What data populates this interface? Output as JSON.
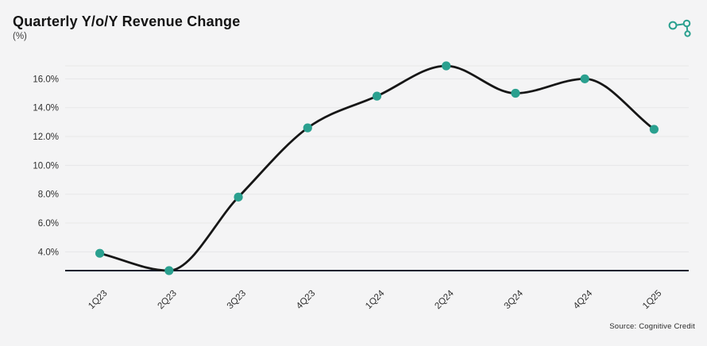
{
  "header": {
    "title": "Quarterly Y/o/Y Revenue Change",
    "subtitle": "(%)"
  },
  "logo": {
    "name": "cognitive-credit-logo",
    "color": "#2aa08f"
  },
  "footer": {
    "source": "Source: Cognitive Credit"
  },
  "chart_data": {
    "type": "line",
    "title": "Quarterly Y/o/Y Revenue Change",
    "ylabel": "(%)",
    "categories": [
      "1Q23",
      "2Q23",
      "3Q23",
      "4Q23",
      "1Q24",
      "2Q24",
      "3Q24",
      "4Q24",
      "1Q25"
    ],
    "series": [
      {
        "name": "Quarterly Y/o/Y Revenue Change",
        "values": [
          3.9,
          2.7,
          7.8,
          12.6,
          14.8,
          16.9,
          15.0,
          16.0,
          12.5
        ]
      }
    ],
    "ylim": [
      2.7,
      16.9
    ],
    "yticks": [
      {
        "value": 4,
        "label": "4.0%"
      },
      {
        "value": 6,
        "label": "6.0%"
      },
      {
        "value": 8,
        "label": "8.0%"
      },
      {
        "value": 10,
        "label": "10.0%"
      },
      {
        "value": 12,
        "label": "12.0%"
      },
      {
        "value": 14,
        "label": "14.0%"
      },
      {
        "value": 16,
        "label": "16.0%"
      }
    ],
    "grid": true,
    "legend": false,
    "x_label_rotation": -45,
    "colors": {
      "background": "#f4f4f5",
      "grid": "#e7e7e8",
      "axis_line": "#0d1b2d",
      "line": "#161616",
      "marker": "#2aa08f"
    }
  }
}
